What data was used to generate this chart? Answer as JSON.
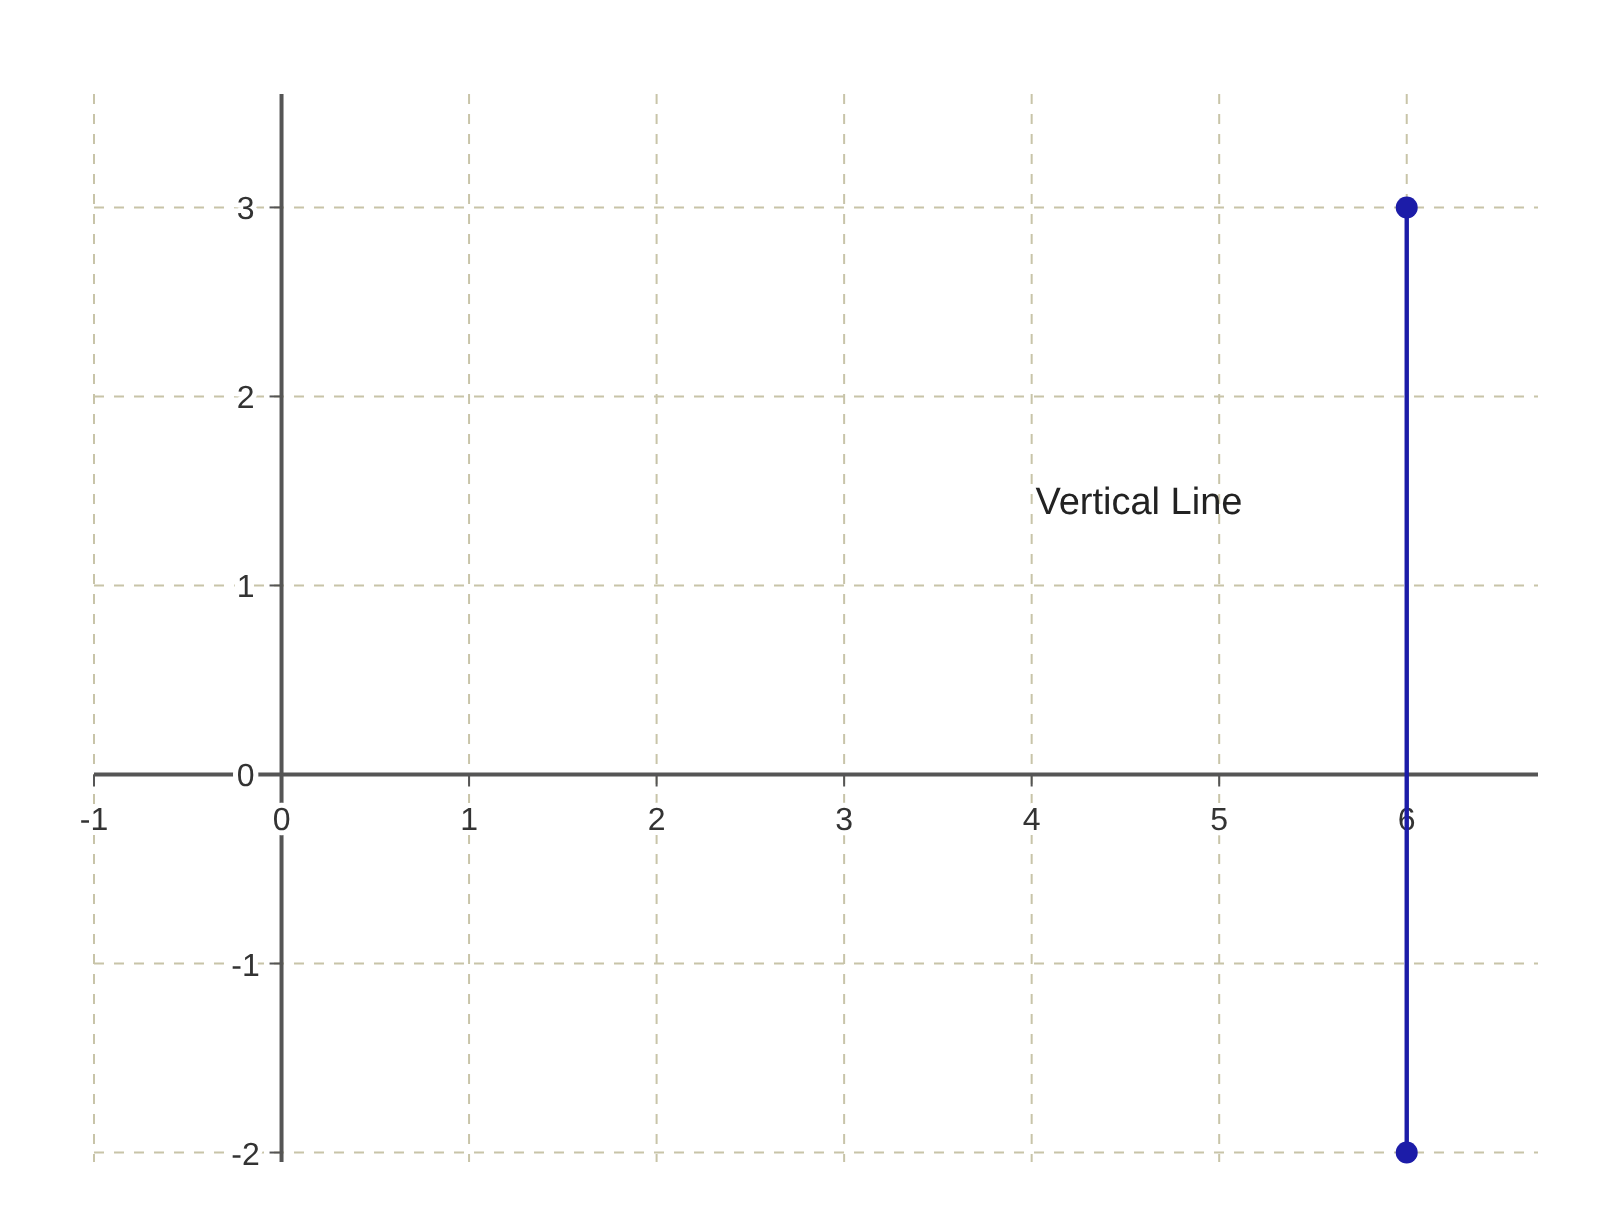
{
  "chart_data": {
    "type": "line",
    "xlim": [
      -1,
      6.7
    ],
    "ylim": [
      -2.05,
      3.6
    ],
    "xticks": [
      -1,
      0,
      1,
      2,
      3,
      4,
      5,
      6
    ],
    "yticks": [
      -2,
      -1,
      0,
      1,
      2,
      3
    ],
    "grid": true,
    "marker": "circle",
    "line_style": "solid",
    "annotations": [
      "Vertical Line"
    ],
    "series": [
      {
        "color": "#1c1ca8",
        "x": [
          6,
          6
        ],
        "values": [
          3,
          -2
        ]
      }
    ]
  }
}
